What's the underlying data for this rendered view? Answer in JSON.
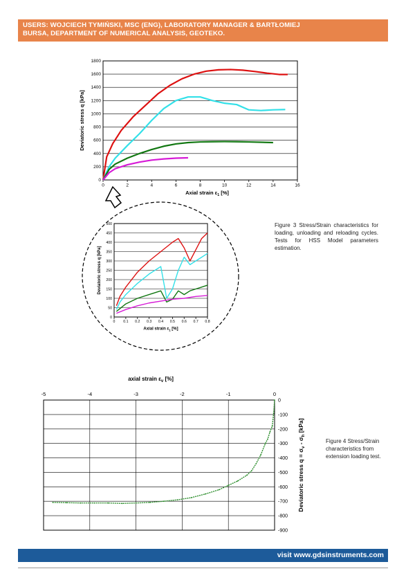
{
  "header": {
    "line1": "USERS: WOJCIECH TYMIŃSKI, MSC (ENG), LABORATORY MANAGER & BARTŁOMIEJ",
    "line2": "BURSA, DEPARTMENT OF NUMERICAL ANALYSIS, GEOTEKO."
  },
  "captions": {
    "fig3": "Figure 3 Stress/Strain characteristics for loading, unloading and reloading cycles. Tests for HSS Model parameters estimation.",
    "fig4": "Figure 4 Stress/Strain characteristics from extension loading test."
  },
  "footer": {
    "url_text": "visit www.gdsinstruments.com"
  },
  "colors": {
    "header_bg": "#e8844a",
    "footer_bg": "#1d5b9a",
    "red": "#dd1111",
    "cyan": "#33e0e8",
    "green": "#117711",
    "magenta": "#d61ad6",
    "ext_green": "#2f8f2f"
  },
  "chart_data": [
    {
      "type": "line",
      "id": "fig3-main",
      "xlabel_main": "Axial strain ε",
      "xlabel_sub": "1",
      "xlabel_unit": "[%]",
      "ylabel": "Deviatoric stress  q  [kPa]",
      "xlim": [
        0,
        16
      ],
      "ylim": [
        0,
        1800
      ],
      "xticks": [
        0,
        2,
        4,
        6,
        8,
        10,
        12,
        14,
        16
      ],
      "yticks": [
        0,
        200,
        400,
        600,
        800,
        1000,
        1200,
        1400,
        1600,
        1800
      ],
      "grid": "horizontal",
      "series": [
        {
          "color": "red",
          "x": [
            0,
            0.3,
            0.8,
            1.5,
            2.5,
            3.5,
            4.5,
            5.5,
            6.5,
            7.5,
            8.5,
            9.5,
            10.5,
            11.5,
            12.5,
            13.5,
            14.5,
            15.2
          ],
          "y": [
            0,
            350,
            550,
            750,
            960,
            1130,
            1300,
            1430,
            1530,
            1600,
            1645,
            1665,
            1670,
            1660,
            1640,
            1615,
            1595,
            1595
          ]
        },
        {
          "color": "cyan",
          "x": [
            0,
            0.5,
            1.0,
            2.0,
            3.0,
            4.0,
            5.0,
            6.0,
            7.0,
            8.0,
            9.0,
            10.0,
            11.0,
            12.0,
            13.0,
            14.0,
            15.0
          ],
          "y": [
            0,
            200,
            330,
            520,
            700,
            900,
            1080,
            1200,
            1255,
            1255,
            1200,
            1160,
            1140,
            1060,
            1050,
            1060,
            1065
          ]
        },
        {
          "color": "green",
          "x": [
            0,
            0.5,
            1.0,
            2.0,
            3.0,
            4.0,
            5.0,
            6.0,
            7.0,
            8.0,
            9.0,
            10.0,
            11.0,
            12.0,
            13.0,
            14.0
          ],
          "y": [
            0,
            160,
            240,
            330,
            400,
            460,
            510,
            545,
            565,
            575,
            578,
            580,
            578,
            575,
            570,
            565
          ]
        },
        {
          "color": "magenta",
          "x": [
            0,
            0.5,
            1.0,
            2.0,
            3.0,
            4.0,
            5.0,
            6.0,
            7.0
          ],
          "y": [
            0,
            110,
            170,
            230,
            270,
            300,
            318,
            330,
            335
          ]
        }
      ]
    },
    {
      "type": "line",
      "id": "fig3-zoom",
      "xlabel_main": "Axial strain  ε",
      "xlabel_sub": "1",
      "xlabel_unit": "[%]",
      "ylabel": "Deviatoric stress  q  [kPa]",
      "xlim": [
        0,
        0.8
      ],
      "ylim": [
        0,
        500
      ],
      "xticks": [
        0,
        0.1,
        0.2,
        0.3,
        0.4,
        0.5,
        0.6,
        0.7,
        0.8
      ],
      "xtick_labels": [
        "0",
        "0.1",
        "0.2",
        "0.3",
        "0.4",
        "0.5",
        "0.6",
        "0.7",
        "0.8"
      ],
      "yticks": [
        0,
        50,
        100,
        150,
        200,
        250,
        300,
        350,
        400,
        450,
        500
      ],
      "grid": "horizontal",
      "series": [
        {
          "color": "red",
          "x": [
            0.02,
            0.05,
            0.1,
            0.2,
            0.3,
            0.4,
            0.5,
            0.55,
            0.6,
            0.65,
            0.7,
            0.75,
            0.8
          ],
          "y": [
            60,
            110,
            160,
            240,
            300,
            350,
            400,
            420,
            370,
            300,
            360,
            420,
            450
          ]
        },
        {
          "color": "cyan",
          "x": [
            0.02,
            0.05,
            0.1,
            0.2,
            0.3,
            0.4,
            0.45,
            0.5,
            0.55,
            0.6,
            0.65,
            0.7,
            0.75,
            0.8
          ],
          "y": [
            40,
            80,
            120,
            180,
            230,
            270,
            100,
            150,
            250,
            320,
            280,
            300,
            320,
            340
          ]
        },
        {
          "color": "green",
          "x": [
            0.02,
            0.1,
            0.2,
            0.3,
            0.4,
            0.45,
            0.5,
            0.55,
            0.6,
            0.65,
            0.7,
            0.75,
            0.8
          ],
          "y": [
            30,
            70,
            100,
            120,
            140,
            80,
            95,
            140,
            120,
            140,
            150,
            160,
            170
          ]
        },
        {
          "color": "magenta",
          "x": [
            0.02,
            0.1,
            0.2,
            0.3,
            0.4,
            0.5,
            0.6,
            0.7,
            0.8
          ],
          "y": [
            20,
            40,
            60,
            75,
            85,
            95,
            100,
            110,
            115
          ]
        }
      ]
    },
    {
      "type": "scatter",
      "id": "fig4",
      "xlabel_main": "axial strain  ε",
      "xlabel_sub": "v",
      "xlabel_unit": "[%]",
      "ylabel_main": "Deviatoric stress  q = σ",
      "ylabel_sub1": "v",
      "ylabel_mid": " - σ",
      "ylabel_sub2": "h",
      "ylabel_unit": "[kPa]",
      "xlim": [
        -5,
        0
      ],
      "ylim": [
        -900,
        0
      ],
      "xticks": [
        -5,
        -4,
        -3,
        -2,
        -1,
        0
      ],
      "yticks": [
        0,
        -100,
        -200,
        -300,
        -400,
        -500,
        -600,
        -700,
        -800,
        -900
      ],
      "grid": "both",
      "series": [
        {
          "color": "ext_green",
          "x": [
            0,
            -0.02,
            -0.05,
            -0.1,
            -0.15,
            -0.2,
            -0.3,
            -0.4,
            -0.5,
            -0.6,
            -0.8,
            -1.0,
            -1.2,
            -1.5,
            -1.8,
            -2.1,
            -2.4,
            -2.7,
            -3.0,
            -3.3,
            -3.6,
            -3.9,
            -4.2,
            -4.5,
            -4.8
          ],
          "y": [
            0,
            -90,
            -180,
            -220,
            -270,
            -300,
            -380,
            -440,
            -490,
            -520,
            -560,
            -590,
            -620,
            -650,
            -675,
            -690,
            -700,
            -708,
            -712,
            -715,
            -712,
            -712,
            -712,
            -710,
            -708
          ]
        }
      ]
    }
  ]
}
